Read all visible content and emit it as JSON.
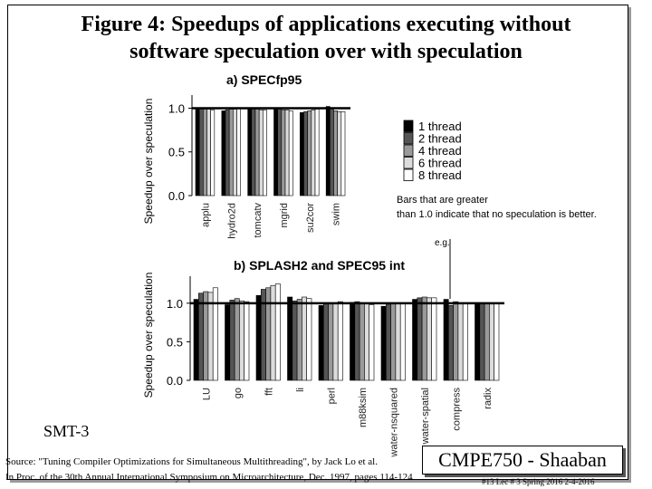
{
  "slide": {
    "title_line1": "Figure 4: Speedups of applications executing without",
    "title_line2": "software speculation over with speculation",
    "smt_label": "SMT-3",
    "source_line1": "Source: \"Tuning Compiler Optimizations for Simultaneous Multithreading\", by Jack Lo et al.",
    "source_line2": "In Proc. of the 30th Annual International Symposium on Microarchitecture, Dec. 1997, pages 114-124",
    "badge": "CMPE750 - Shaaban",
    "footer": "#13   Lec # 3   Spring 2016   2-4-2016",
    "annotation_line1": "Bars that are greater",
    "annotation_line2": "than 1.0 indicate that no speculation is better.",
    "eg_label": "e.g."
  },
  "colors": {
    "series": [
      "#000000",
      "#555555",
      "#9a9a9a",
      "#dcdcdc",
      "#ffffff"
    ],
    "stroke": "#000000"
  },
  "chart_data": [
    {
      "type": "bar",
      "title": "a) SPECfp95",
      "ylabel": "Speedup over speculation",
      "ylim": [
        0,
        1.15
      ],
      "yticks": [
        "0.0",
        "0.5",
        "1.0"
      ],
      "categories": [
        "applu",
        "hydro2d",
        "tomcatv",
        "mgrid",
        "su2cor",
        "swim"
      ],
      "reference_line": 1.0,
      "legend_position": "right",
      "series": [
        {
          "name": "1 thread",
          "values": [
            1.0,
            0.97,
            1.0,
            1.0,
            0.95,
            1.02
          ]
        },
        {
          "name": "2 thread",
          "values": [
            1.0,
            0.98,
            0.99,
            0.99,
            0.96,
            1.0
          ]
        },
        {
          "name": "4 thread",
          "values": [
            0.99,
            0.99,
            0.99,
            0.98,
            0.97,
            0.97
          ]
        },
        {
          "name": "6 thread",
          "values": [
            0.99,
            0.99,
            0.98,
            0.98,
            0.98,
            0.96
          ]
        },
        {
          "name": "8 thread",
          "values": [
            0.98,
            1.0,
            0.98,
            0.97,
            0.99,
            0.96
          ]
        }
      ]
    },
    {
      "type": "bar",
      "title": "b) SPLASH2 and SPEC95 int",
      "ylabel": "Speedup over speculation",
      "ylim": [
        0,
        1.35
      ],
      "yticks": [
        "0.0",
        "0.5",
        "1.0"
      ],
      "categories": [
        "LU",
        "go",
        "fft",
        "li",
        "perl",
        "m88ksim",
        "water-nsquared",
        "water-spatial",
        "compress",
        "radix"
      ],
      "reference_line": 1.0,
      "series": [
        {
          "name": "1 thread",
          "values": [
            1.05,
            0.98,
            1.1,
            1.08,
            0.97,
            1.01,
            0.96,
            1.05,
            1.05,
            1.0
          ]
        },
        {
          "name": "2 thread",
          "values": [
            1.13,
            1.04,
            1.18,
            1.03,
            0.99,
            1.02,
            0.98,
            1.07,
            0.97,
            1.0
          ]
        },
        {
          "name": "4 thread",
          "values": [
            1.15,
            1.06,
            1.2,
            1.05,
            1.0,
            1.0,
            1.0,
            1.08,
            1.02,
            1.0
          ]
        },
        {
          "name": "6 thread",
          "values": [
            1.14,
            1.03,
            1.23,
            1.08,
            1.0,
            1.0,
            1.0,
            1.07,
            1.0,
            1.0
          ]
        },
        {
          "name": "8 thread",
          "values": [
            1.2,
            1.02,
            1.25,
            1.06,
            1.02,
            0.98,
            1.0,
            1.07,
            1.0,
            1.0
          ]
        }
      ]
    }
  ]
}
